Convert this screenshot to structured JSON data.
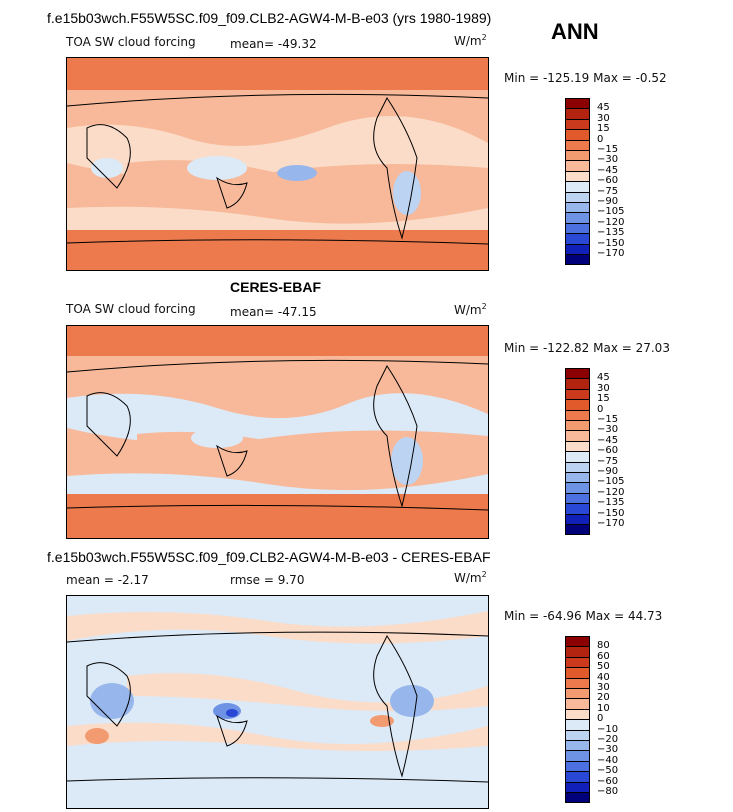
{
  "season": "ANN",
  "panels": [
    {
      "title": "f.e15b03wch.F55W5SC.f09_f09.CLB2-AGW4-M-B-e03 (yrs 1980-1989)",
      "variable": "TOA SW cloud forcing",
      "mean": "mean= -49.32",
      "units_base": "W/m",
      "units_exp": "2",
      "minmax": "Min = -125.19 Max =  -0.52",
      "colorbar_labels": [
        "45",
        "30",
        "15",
        "0",
        "−15",
        "−30",
        "−45",
        "−60",
        "−75",
        "−90",
        "−105",
        "−120",
        "−135",
        "−150",
        "−170"
      ],
      "colors": [
        "#8b0000",
        "#b32410",
        "#cc3a1e",
        "#e05a2c",
        "#ec7a4c",
        "#f29a70",
        "#f7b99a",
        "#fbdcc8",
        "#dce9f7",
        "#bcd3f2",
        "#97b6ec",
        "#6e93e5",
        "#4c70e0",
        "#2a48d6",
        "#1020b8",
        "#00007a"
      ]
    },
    {
      "title": "CERES-EBAF",
      "variable": "TOA SW cloud forcing",
      "mean": "mean= -47.15",
      "units_base": "W/m",
      "units_exp": "2",
      "minmax": "Min = -122.82 Max =  27.03",
      "colorbar_labels": [
        "45",
        "30",
        "15",
        "0",
        "−15",
        "−30",
        "−45",
        "−60",
        "−75",
        "−90",
        "−105",
        "−120",
        "−135",
        "−150",
        "−170"
      ],
      "colors": [
        "#8b0000",
        "#b32410",
        "#cc3a1e",
        "#e05a2c",
        "#ec7a4c",
        "#f29a70",
        "#f7b99a",
        "#fbdcc8",
        "#dce9f7",
        "#bcd3f2",
        "#97b6ec",
        "#6e93e5",
        "#4c70e0",
        "#2a48d6",
        "#1020b8",
        "#00007a"
      ]
    },
    {
      "title": "f.e15b03wch.F55W5SC.f09_f09.CLB2-AGW4-M-B-e03 - CERES-EBAF",
      "mean": "mean =  -2.17",
      "rmse": "rmse =   9.70",
      "units_base": "W/m",
      "units_exp": "2",
      "minmax": "Min = -64.96 Max =  44.73",
      "colorbar_labels": [
        "80",
        "60",
        "50",
        "40",
        "30",
        "20",
        "10",
        "0",
        "−10",
        "−20",
        "−30",
        "−40",
        "−50",
        "−60",
        "−80"
      ],
      "colors": [
        "#8b0000",
        "#b32410",
        "#cc3a1e",
        "#e05a2c",
        "#ec7a4c",
        "#f29a70",
        "#f7b99a",
        "#fbdcc8",
        "#dce9f7",
        "#bcd3f2",
        "#97b6ec",
        "#6e93e5",
        "#4c70e0",
        "#2a48d6",
        "#1020b8",
        "#00007a"
      ]
    }
  ]
}
